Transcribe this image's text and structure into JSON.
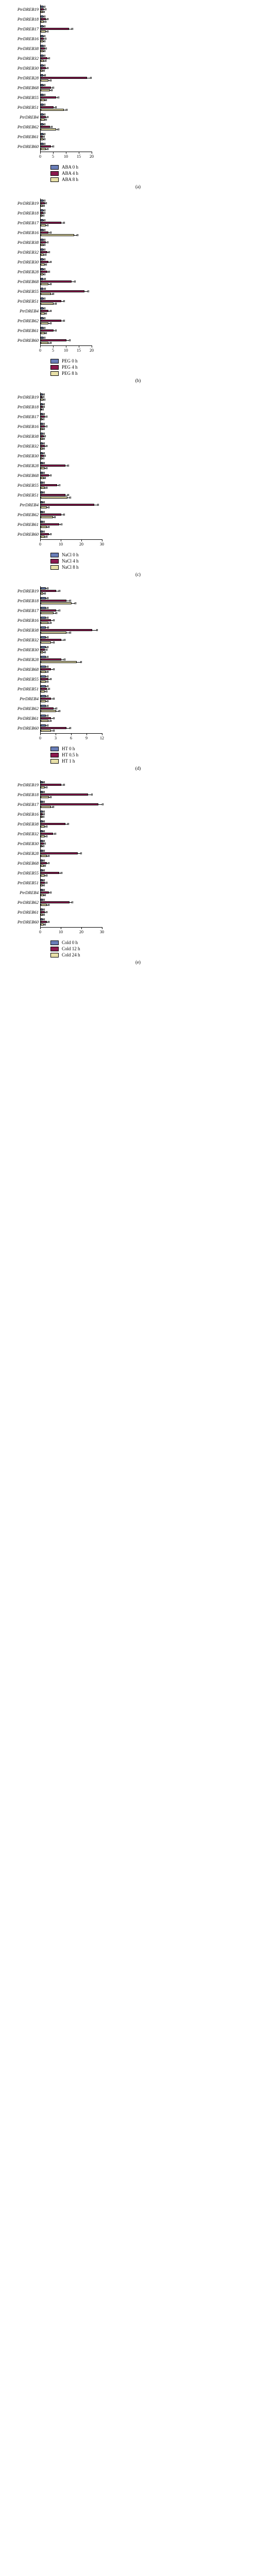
{
  "genes": [
    "PtrDREB19",
    "PtrDREB18",
    "PtrDREB17",
    "PtrDREB16",
    "PtrDREB38",
    "PtrDREB32",
    "PtrDREB30",
    "PtrDREB28",
    "PtrDREB68",
    "PtrDREB55",
    "PtrDREB51",
    "PtrDREB4",
    "PtrDREB62",
    "PtrDREB61",
    "PtrDREB60"
  ],
  "colors": {
    "c0": "#6a7eb8",
    "c1": "#8b1a4f",
    "c2": "#e8e0a8",
    "border": "#000000",
    "bg": "#ffffff"
  },
  "panels": [
    {
      "id": "a",
      "label": "(a)",
      "xmax": 20,
      "xstep": 5,
      "chartW": 100,
      "legend": [
        "ABA 0 h",
        "ABA 4 h",
        "ABA 8 h"
      ],
      "data": [
        [
          1,
          1.2,
          0.8
        ],
        [
          1,
          2,
          1.2
        ],
        [
          1,
          11,
          2
        ],
        [
          1,
          1.2,
          1
        ],
        [
          1,
          1.5,
          1
        ],
        [
          1,
          2.5,
          1.2
        ],
        [
          1,
          2,
          0.8
        ],
        [
          1,
          18,
          3
        ],
        [
          1,
          4,
          3.5
        ],
        [
          1,
          6,
          1.5
        ],
        [
          1,
          5,
          9
        ],
        [
          1,
          2,
          1.5
        ],
        [
          1,
          3.5,
          6
        ],
        [
          1,
          0.8,
          1
        ],
        [
          1,
          4,
          2
        ]
      ],
      "err": [
        [
          0.2,
          0.3,
          0.2
        ],
        [
          0.2,
          0.4,
          0.3
        ],
        [
          0.2,
          1,
          0.4
        ],
        [
          0.2,
          0.3,
          0.2
        ],
        [
          0.2,
          0.3,
          0.2
        ],
        [
          0.2,
          0.4,
          0.3
        ],
        [
          0.2,
          0.4,
          0.2
        ],
        [
          0.3,
          1.2,
          0.5
        ],
        [
          0.2,
          0.5,
          0.5
        ],
        [
          0.2,
          0.6,
          0.3
        ],
        [
          0.2,
          0.6,
          0.8
        ],
        [
          0.2,
          0.4,
          0.3
        ],
        [
          0.2,
          0.5,
          0.6
        ],
        [
          0.2,
          0.2,
          0.2
        ],
        [
          0.2,
          0.5,
          0.4
        ]
      ]
    },
    {
      "id": "b",
      "label": "(b)",
      "xmax": 20,
      "xstep": 5,
      "chartW": 100,
      "legend": [
        "PEG 0 h",
        "PEG 4 h",
        "PEG 8 h"
      ],
      "data": [
        [
          1,
          1.5,
          0.8
        ],
        [
          1,
          1,
          0.5
        ],
        [
          1,
          8,
          2
        ],
        [
          1,
          3,
          13
        ],
        [
          1,
          2,
          1
        ],
        [
          1,
          2.5,
          1.2
        ],
        [
          1,
          3,
          1.5
        ],
        [
          1,
          2.5,
          1
        ],
        [
          1,
          12,
          3
        ],
        [
          1,
          17,
          4
        ],
        [
          1,
          8,
          5
        ],
        [
          1,
          3,
          1.5
        ],
        [
          1,
          8,
          3
        ],
        [
          1,
          5,
          1.5
        ],
        [
          1,
          10,
          3
        ]
      ],
      "err": [
        [
          0.2,
          0.3,
          0.2
        ],
        [
          0.2,
          0.2,
          0.2
        ],
        [
          0.2,
          0.8,
          0.4
        ],
        [
          0.2,
          0.5,
          1
        ],
        [
          0.2,
          0.4,
          0.2
        ],
        [
          0.2,
          0.4,
          0.3
        ],
        [
          0.2,
          0.5,
          0.3
        ],
        [
          0.2,
          0.4,
          0.2
        ],
        [
          0.3,
          1,
          0.5
        ],
        [
          0.3,
          1.2,
          0.6
        ],
        [
          0.2,
          0.8,
          0.6
        ],
        [
          0.2,
          0.5,
          0.3
        ],
        [
          0.2,
          0.8,
          0.5
        ],
        [
          0.2,
          0.6,
          0.3
        ],
        [
          0.2,
          0.9,
          0.5
        ]
      ]
    },
    {
      "id": "c",
      "label": "(c)",
      "xmax": 30,
      "xstep": 10,
      "chartW": 120,
      "legend": [
        "NaCl 0 h",
        "NaCl 4 h",
        "NaCl 8 h"
      ],
      "data": [
        [
          1,
          0.8,
          1.2
        ],
        [
          1,
          1,
          0.5
        ],
        [
          1,
          2,
          0.8
        ],
        [
          1,
          2,
          1
        ],
        [
          1,
          1.5,
          1
        ],
        [
          1,
          2,
          1
        ],
        [
          1,
          1.5,
          0.8
        ],
        [
          1,
          12,
          2
        ],
        [
          1,
          4,
          1.5
        ],
        [
          1,
          8,
          2
        ],
        [
          1,
          12,
          13
        ],
        [
          1,
          26,
          3
        ],
        [
          1,
          10,
          6
        ],
        [
          1,
          9,
          3
        ],
        [
          1,
          4,
          2
        ]
      ],
      "err": [
        [
          0.2,
          0.2,
          0.3
        ],
        [
          0.2,
          0.2,
          0.2
        ],
        [
          0.2,
          0.4,
          0.2
        ],
        [
          0.2,
          0.4,
          0.2
        ],
        [
          0.2,
          0.3,
          0.2
        ],
        [
          0.2,
          0.4,
          0.2
        ],
        [
          0.2,
          0.3,
          0.2
        ],
        [
          0.3,
          1,
          0.4
        ],
        [
          0.2,
          0.5,
          0.3
        ],
        [
          0.2,
          0.8,
          0.4
        ],
        [
          0.3,
          1,
          1
        ],
        [
          0.3,
          1.5,
          0.5
        ],
        [
          0.2,
          0.9,
          0.6
        ],
        [
          0.2,
          0.8,
          0.5
        ],
        [
          0.2,
          0.5,
          0.4
        ]
      ]
    },
    {
      "id": "d",
      "label": "(d)",
      "xmax": 12,
      "xstep": 3,
      "chartW": 120,
      "legend": [
        "HT 0 h",
        "HT 0.5 h",
        "HT 1 h"
      ],
      "data": [
        [
          1,
          3,
          0.5
        ],
        [
          1,
          5,
          6
        ],
        [
          1,
          3,
          2.5
        ],
        [
          1,
          2,
          1.5
        ],
        [
          1,
          10,
          5
        ],
        [
          1,
          4,
          2
        ],
        [
          1,
          0.8,
          0.5
        ],
        [
          1,
          4,
          7
        ],
        [
          1,
          2,
          1
        ],
        [
          1,
          1.5,
          1
        ],
        [
          1,
          1.2,
          0.8
        ],
        [
          1,
          2,
          1
        ],
        [
          1,
          2.5,
          3
        ],
        [
          1,
          2,
          1.5
        ],
        [
          1,
          5,
          2
        ]
      ],
      "err": [
        [
          0.2,
          0.5,
          0.2
        ],
        [
          0.2,
          0.6,
          0.6
        ],
        [
          0.2,
          0.5,
          0.4
        ],
        [
          0.2,
          0.4,
          0.3
        ],
        [
          0.3,
          0.8,
          0.6
        ],
        [
          0.2,
          0.5,
          0.4
        ],
        [
          0.2,
          0.2,
          0.2
        ],
        [
          0.2,
          0.5,
          0.7
        ],
        [
          0.2,
          0.4,
          0.2
        ],
        [
          0.2,
          0.3,
          0.2
        ],
        [
          0.2,
          0.3,
          0.2
        ],
        [
          0.2,
          0.4,
          0.2
        ],
        [
          0.2,
          0.4,
          0.5
        ],
        [
          0.2,
          0.4,
          0.3
        ],
        [
          0.2,
          0.6,
          0.4
        ]
      ]
    },
    {
      "id": "e",
      "label": "(e)",
      "xmax": 30,
      "xstep": 10,
      "chartW": 120,
      "legend": [
        "Cold 0 h",
        "Cold 12 h",
        "Cold 24 h"
      ],
      "data": [
        [
          1,
          10,
          2
        ],
        [
          1,
          23,
          4
        ],
        [
          1,
          28,
          5
        ],
        [
          1,
          1,
          0.8
        ],
        [
          1,
          12,
          2
        ],
        [
          1,
          6,
          2
        ],
        [
          1,
          1.5,
          0.8
        ],
        [
          1,
          18,
          3
        ],
        [
          1,
          3,
          1.5
        ],
        [
          1,
          9,
          2
        ],
        [
          1,
          2,
          1
        ],
        [
          1,
          4,
          1.5
        ],
        [
          1,
          14,
          3
        ],
        [
          1,
          2,
          1
        ],
        [
          1,
          3,
          1.5
        ]
      ],
      "err": [
        [
          0.2,
          0.9,
          0.4
        ],
        [
          0.3,
          1.5,
          0.6
        ],
        [
          0.3,
          1.8,
          0.7
        ],
        [
          0.2,
          0.2,
          0.2
        ],
        [
          0.3,
          1,
          0.4
        ],
        [
          0.2,
          0.7,
          0.4
        ],
        [
          0.2,
          0.3,
          0.2
        ],
        [
          0.3,
          1.3,
          0.5
        ],
        [
          0.2,
          0.5,
          0.3
        ],
        [
          0.2,
          0.8,
          0.4
        ],
        [
          0.2,
          0.4,
          0.2
        ],
        [
          0.2,
          0.5,
          0.3
        ],
        [
          0.3,
          1.1,
          0.5
        ],
        [
          0.2,
          0.4,
          0.2
        ],
        [
          0.2,
          0.5,
          0.3
        ]
      ]
    }
  ]
}
